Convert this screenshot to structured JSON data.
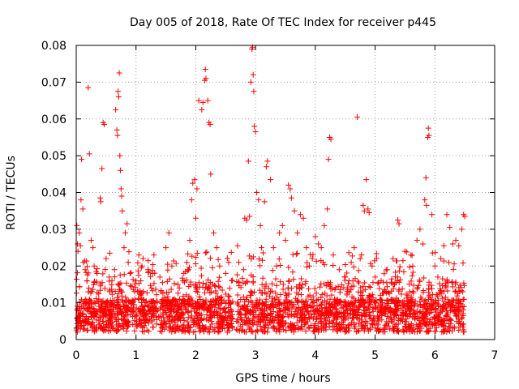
{
  "chart_data": {
    "type": "scatter",
    "title": "Day 005 of 2018, Rate Of TEC Index for receiver p445",
    "xlabel": "GPS time / hours",
    "ylabel": "ROTI / TECUs",
    "xlim": [
      0,
      7
    ],
    "ylim": [
      0,
      0.08
    ],
    "x_ticks": [
      0,
      1,
      2,
      3,
      4,
      5,
      6,
      7
    ],
    "x_tick_labels": [
      "0",
      "1",
      "2",
      "3",
      "4",
      "5",
      "6",
      "7"
    ],
    "y_ticks": [
      0,
      0.01,
      0.02,
      0.03,
      0.04,
      0.05,
      0.06,
      0.07,
      0.08
    ],
    "y_tick_labels": [
      "0",
      "0.01",
      "0.02",
      "0.03",
      "0.04",
      "0.05",
      "0.06",
      "0.07",
      "0.08"
    ],
    "grid": true,
    "marker": "+",
    "color": "#ff0000",
    "background": "#ffffff",
    "gap_hours": [
      2.62,
      2.68
    ],
    "series": [
      {
        "name": "ROTI",
        "points": [
          [
            0.01,
            0.031
          ],
          [
            0.02,
            0.026
          ],
          [
            0.03,
            0.024
          ],
          [
            0.05,
            0.029
          ],
          [
            0.07,
            0.0255
          ],
          [
            0.08,
            0.038
          ],
          [
            0.09,
            0.049
          ],
          [
            0.11,
            0.0355
          ],
          [
            0.12,
            0.021
          ],
          [
            0.15,
            0.019
          ],
          [
            0.18,
            0.016
          ],
          [
            0.2,
            0.0685
          ],
          [
            0.22,
            0.0505
          ],
          [
            0.25,
            0.027
          ],
          [
            0.28,
            0.025
          ],
          [
            0.3,
            0.02
          ],
          [
            0.35,
            0.018
          ],
          [
            0.4,
            0.0385
          ],
          [
            0.41,
            0.0375
          ],
          [
            0.43,
            0.0465
          ],
          [
            0.45,
            0.059
          ],
          [
            0.47,
            0.0585
          ],
          [
            0.5,
            0.022
          ],
          [
            0.55,
            0.017
          ],
          [
            0.6,
            0.013
          ],
          [
            0.64,
            0.019
          ],
          [
            0.66,
            0.0625
          ],
          [
            0.68,
            0.057
          ],
          [
            0.69,
            0.0555
          ],
          [
            0.7,
            0.0675
          ],
          [
            0.71,
            0.066
          ],
          [
            0.72,
            0.0725
          ],
          [
            0.73,
            0.05
          ],
          [
            0.74,
            0.046
          ],
          [
            0.75,
            0.041
          ],
          [
            0.76,
            0.039
          ],
          [
            0.77,
            0.035
          ],
          [
            0.8,
            0.025
          ],
          [
            0.82,
            0.029
          ],
          [
            0.85,
            0.0315
          ],
          [
            0.87,
            0.021
          ],
          [
            0.9,
            0.018
          ],
          [
            1.0,
            0.016
          ],
          [
            1.1,
            0.02
          ],
          [
            1.2,
            0.019
          ],
          [
            1.3,
            0.023
          ],
          [
            1.4,
            0.017
          ],
          [
            1.5,
            0.025
          ],
          [
            1.55,
            0.029
          ],
          [
            1.6,
            0.02
          ],
          [
            1.7,
            0.015
          ],
          [
            1.8,
            0.018
          ],
          [
            1.85,
            0.021
          ],
          [
            1.9,
            0.027
          ],
          [
            1.93,
            0.038
          ],
          [
            1.95,
            0.0425
          ],
          [
            1.98,
            0.0435
          ],
          [
            2.0,
            0.033
          ],
          [
            2.02,
            0.041
          ],
          [
            2.05,
            0.065
          ],
          [
            2.1,
            0.0625
          ],
          [
            2.12,
            0.0645
          ],
          [
            2.15,
            0.0705
          ],
          [
            2.16,
            0.0735
          ],
          [
            2.17,
            0.071
          ],
          [
            2.2,
            0.065
          ],
          [
            2.22,
            0.059
          ],
          [
            2.24,
            0.0585
          ],
          [
            2.25,
            0.045
          ],
          [
            2.3,
            0.029
          ],
          [
            2.35,
            0.025
          ],
          [
            2.4,
            0.02
          ],
          [
            2.5,
            0.018
          ],
          [
            2.55,
            0.021
          ],
          [
            2.6,
            0.016
          ],
          [
            2.7,
            0.0255
          ],
          [
            2.72,
            0.021
          ],
          [
            2.8,
            0.019
          ],
          [
            2.82,
            0.033
          ],
          [
            2.85,
            0.0325
          ],
          [
            2.88,
            0.0485
          ],
          [
            2.9,
            0.0335
          ],
          [
            2.92,
            0.07
          ],
          [
            2.94,
            0.079
          ],
          [
            2.95,
            0.0795
          ],
          [
            2.96,
            0.072
          ],
          [
            2.97,
            0.0675
          ],
          [
            2.98,
            0.058
          ],
          [
            3.0,
            0.0565
          ],
          [
            3.02,
            0.04
          ],
          [
            3.05,
            0.038
          ],
          [
            3.08,
            0.031
          ],
          [
            3.1,
            0.025
          ],
          [
            3.15,
            0.0375
          ],
          [
            3.18,
            0.047
          ],
          [
            3.2,
            0.0485
          ],
          [
            3.25,
            0.0435
          ],
          [
            3.3,
            0.025
          ],
          [
            3.35,
            0.02
          ],
          [
            3.4,
            0.029
          ],
          [
            3.45,
            0.031
          ],
          [
            3.5,
            0.027
          ],
          [
            3.55,
            0.042
          ],
          [
            3.58,
            0.041
          ],
          [
            3.6,
            0.0385
          ],
          [
            3.65,
            0.035
          ],
          [
            3.7,
            0.029
          ],
          [
            3.75,
            0.034
          ],
          [
            3.8,
            0.033
          ],
          [
            3.85,
            0.025
          ],
          [
            3.9,
            0.02
          ],
          [
            3.95,
            0.022
          ],
          [
            4.0,
            0.028
          ],
          [
            4.05,
            0.026
          ],
          [
            4.1,
            0.025
          ],
          [
            4.15,
            0.031
          ],
          [
            4.2,
            0.0355
          ],
          [
            4.22,
            0.049
          ],
          [
            4.24,
            0.055
          ],
          [
            4.26,
            0.0545
          ],
          [
            4.3,
            0.023
          ],
          [
            4.4,
            0.019
          ],
          [
            4.5,
            0.017
          ],
          [
            4.6,
            0.021
          ],
          [
            4.65,
            0.025
          ],
          [
            4.7,
            0.0605
          ],
          [
            4.75,
            0.022
          ],
          [
            4.8,
            0.0365
          ],
          [
            4.82,
            0.035
          ],
          [
            4.85,
            0.0435
          ],
          [
            4.88,
            0.0355
          ],
          [
            4.9,
            0.0345
          ],
          [
            4.95,
            0.02
          ],
          [
            5.0,
            0.017
          ],
          [
            5.1,
            0.016
          ],
          [
            5.2,
            0.019
          ],
          [
            5.3,
            0.022
          ],
          [
            5.38,
            0.0325
          ],
          [
            5.4,
            0.0315
          ],
          [
            5.5,
            0.024
          ],
          [
            5.6,
            0.023
          ],
          [
            5.7,
            0.027
          ],
          [
            5.75,
            0.03
          ],
          [
            5.8,
            0.026
          ],
          [
            5.83,
            0.038
          ],
          [
            5.85,
            0.044
          ],
          [
            5.86,
            0.0365
          ],
          [
            5.88,
            0.055
          ],
          [
            5.89,
            0.0575
          ],
          [
            5.9,
            0.0555
          ],
          [
            5.95,
            0.034
          ],
          [
            6.0,
            0.02
          ],
          [
            6.05,
            0.017
          ],
          [
            6.1,
            0.022
          ],
          [
            6.15,
            0.0255
          ],
          [
            6.2,
            0.034
          ],
          [
            6.25,
            0.0305
          ],
          [
            6.3,
            0.026
          ],
          [
            6.35,
            0.027
          ],
          [
            6.4,
            0.0255
          ],
          [
            6.45,
            0.03
          ],
          [
            6.48,
            0.034
          ],
          [
            6.5,
            0.0335
          ]
        ]
      }
    ]
  }
}
